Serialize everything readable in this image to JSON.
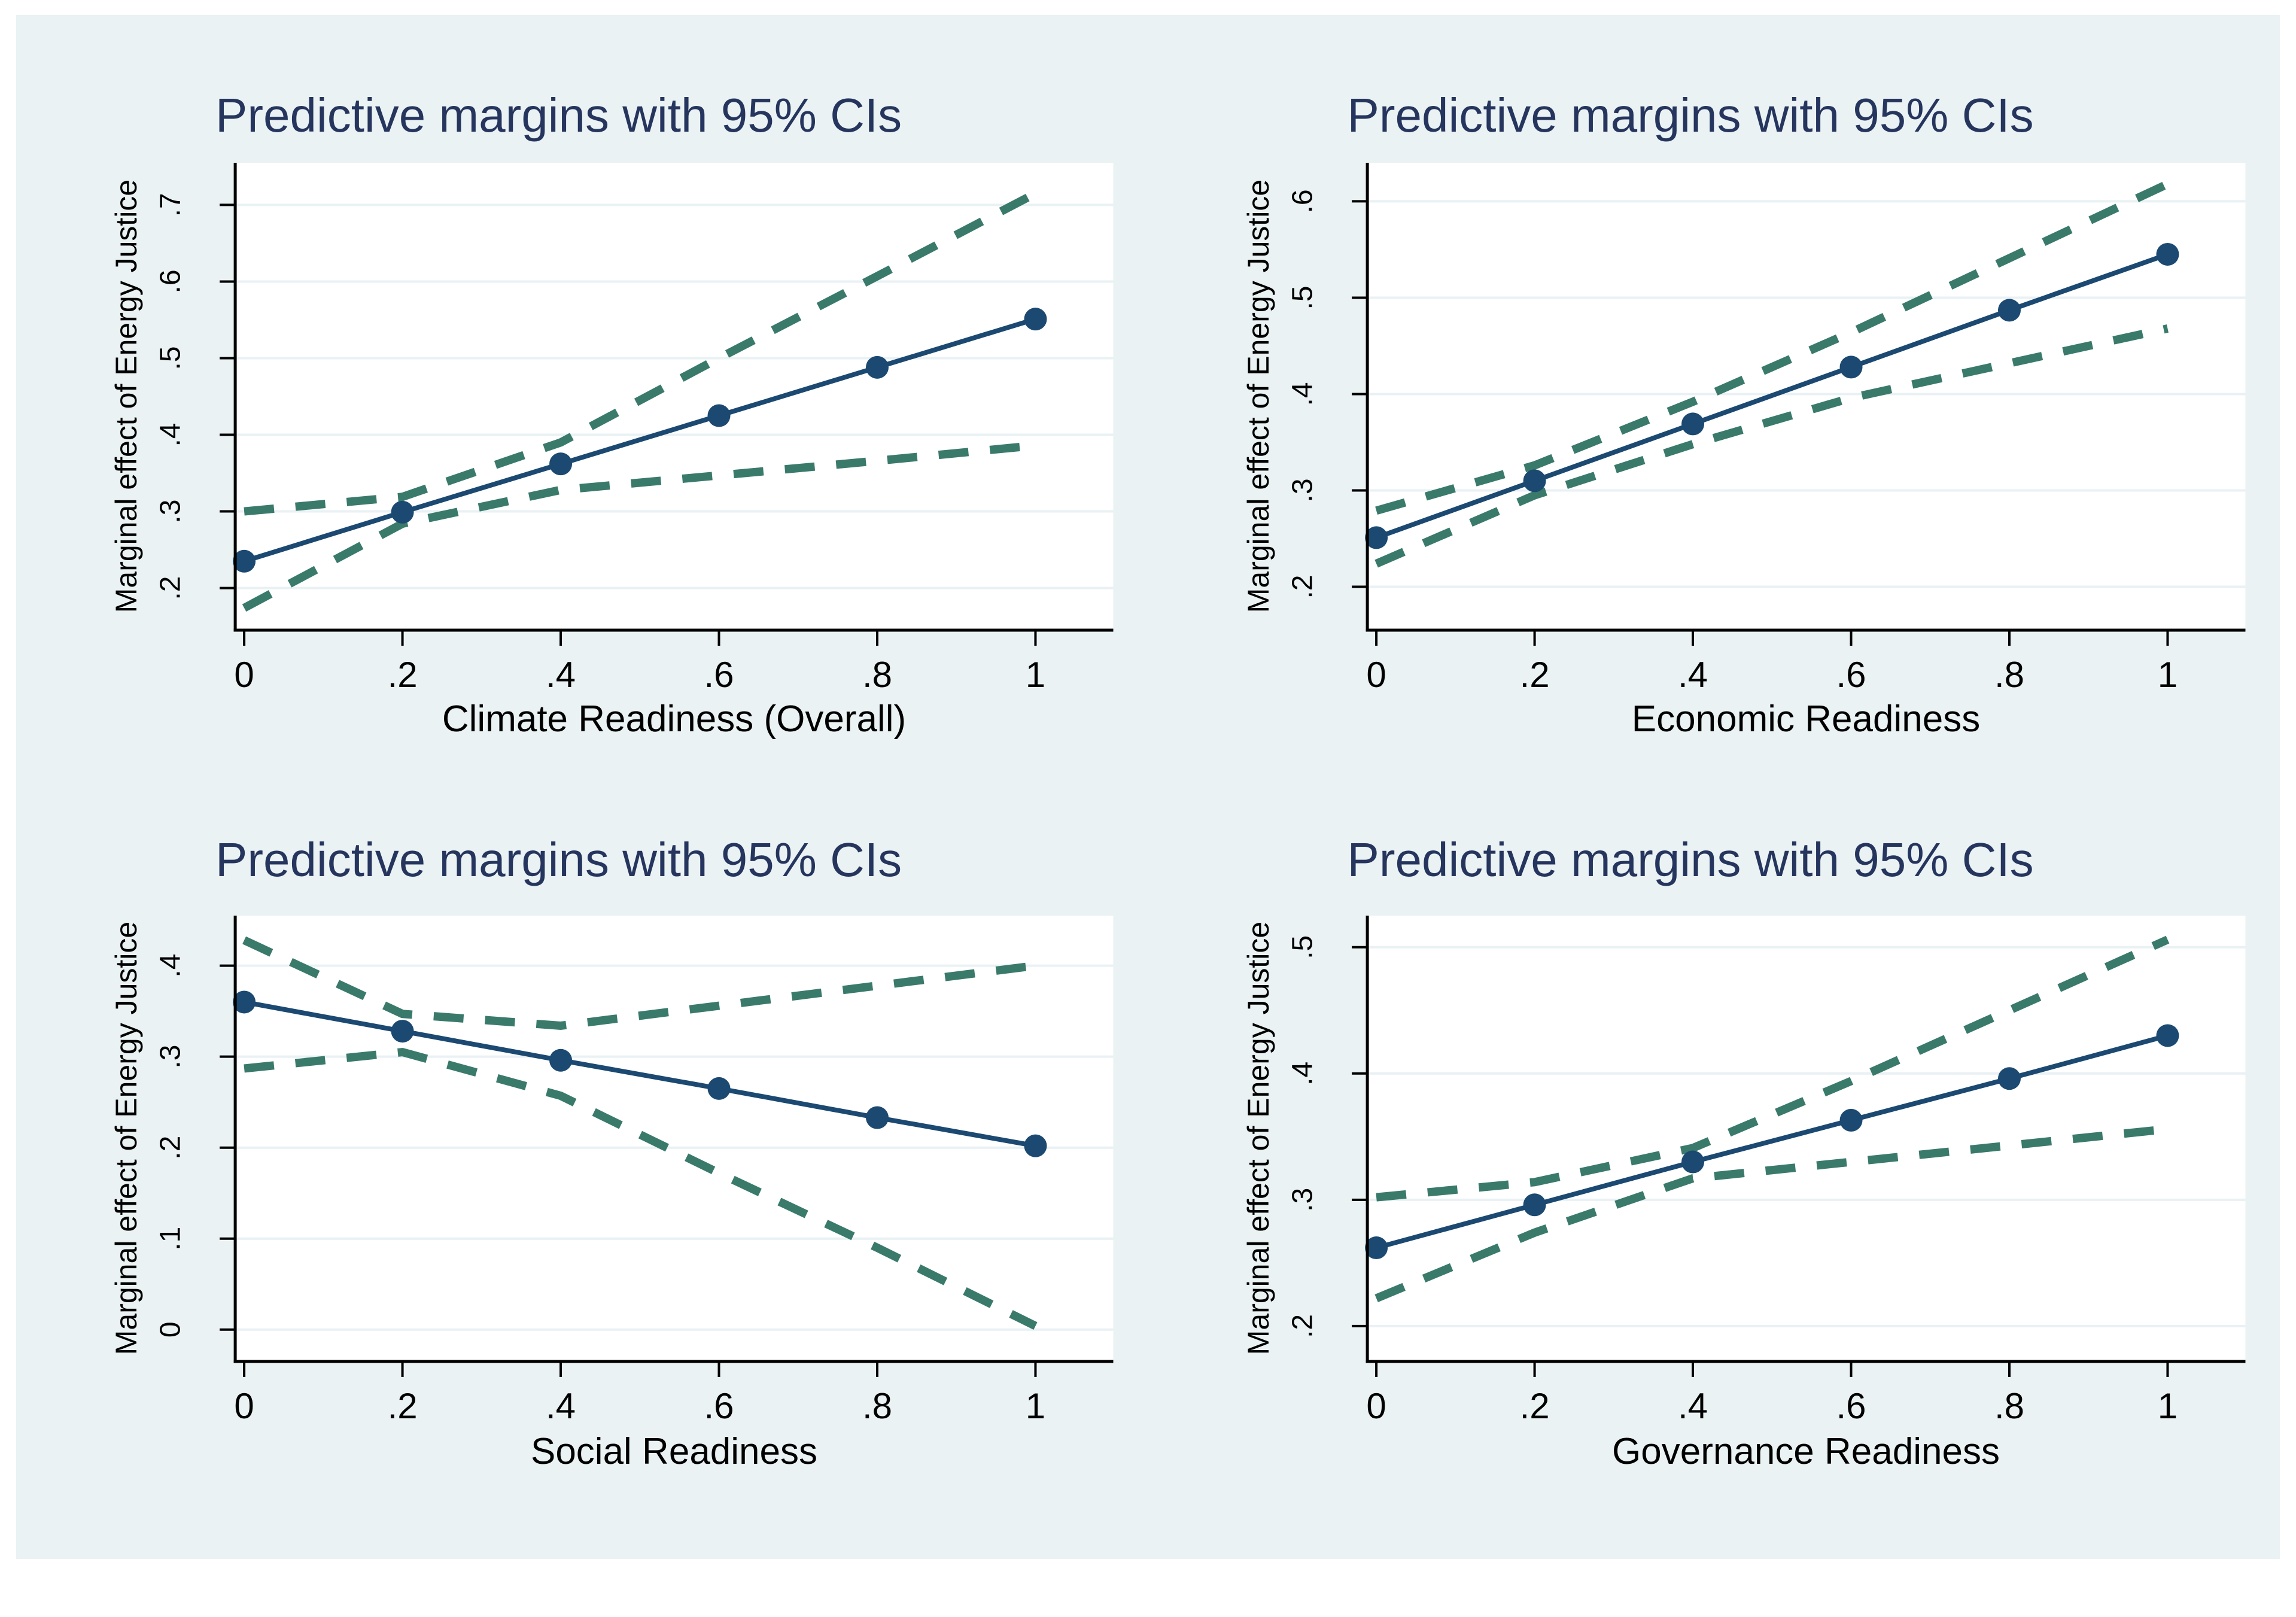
{
  "colors": {
    "page_bg": "#ffffff",
    "figure_bg": "#eaf2f3",
    "plot_bg": "#ffffff",
    "gridline": "#e9f1f4",
    "axis": "#000000",
    "title_text": "#26355e",
    "label_text": "#000000",
    "margin_line": "#1b4971",
    "ci_line": "#3a7a6b"
  },
  "chart_data": [
    {
      "type": "line",
      "title": "Predictive margins with 95% CIs",
      "xlabel": "Climate Readiness (Overall)",
      "ylabel": "Marginal effect of Energy Justice",
      "grid": "horizontal",
      "legend": "none",
      "x": [
        0,
        0.2,
        0.4,
        0.6,
        0.8,
        1
      ],
      "xtick_labels": [
        "0",
        ".2",
        ".4",
        ".6",
        ".8",
        "1"
      ],
      "yticks": [
        0.2,
        0.3,
        0.4,
        0.5,
        0.6,
        0.7
      ],
      "ytick_labels": [
        ".2",
        ".3",
        ".4",
        ".5",
        ".6",
        ".7"
      ],
      "ylim": [
        0.145,
        0.755
      ],
      "series": [
        {
          "name": "Predictive margin",
          "style": "solid-markers",
          "color": "#1b4971",
          "values": [
            0.235,
            0.299,
            0.362,
            0.425,
            0.488,
            0.551
          ]
        },
        {
          "name": "Upper 95% CI",
          "style": "dashed",
          "color": "#3a7a6b",
          "values": [
            0.3,
            0.319,
            0.39,
            0.5,
            0.607,
            0.715
          ]
        },
        {
          "name": "Lower 95% CI",
          "style": "dashed",
          "color": "#3a7a6b",
          "values": [
            0.174,
            0.284,
            0.328,
            0.347,
            0.366,
            0.386
          ]
        }
      ]
    },
    {
      "type": "line",
      "title": "Predictive margins with 95% CIs",
      "xlabel": "Economic Readiness",
      "ylabel": "Marginal effect of Energy Justice",
      "grid": "horizontal",
      "legend": "none",
      "x": [
        0,
        0.2,
        0.4,
        0.6,
        0.8,
        1
      ],
      "xtick_labels": [
        "0",
        ".2",
        ".4",
        ".6",
        ".8",
        "1"
      ],
      "yticks": [
        0.2,
        0.3,
        0.4,
        0.5,
        0.6
      ],
      "ytick_labels": [
        ".2",
        ".3",
        ".4",
        ".5",
        ".6"
      ],
      "ylim": [
        0.155,
        0.64
      ],
      "series": [
        {
          "name": "Predictive margin",
          "style": "solid-markers",
          "color": "#1b4971",
          "values": [
            0.251,
            0.31,
            0.369,
            0.428,
            0.487,
            0.545
          ]
        },
        {
          "name": "Upper 95% CI",
          "style": "dashed",
          "color": "#3a7a6b",
          "values": [
            0.279,
            0.326,
            0.392,
            0.464,
            0.541,
            0.618
          ]
        },
        {
          "name": "Lower 95% CI",
          "style": "dashed",
          "color": "#3a7a6b",
          "values": [
            0.224,
            0.295,
            0.348,
            0.396,
            0.432,
            0.468
          ]
        }
      ]
    },
    {
      "type": "line",
      "title": "Predictive margins with 95% CIs",
      "xlabel": "Social Readiness",
      "ylabel": "Marginal effect of Energy Justice",
      "grid": "horizontal",
      "legend": "none",
      "x": [
        0,
        0.2,
        0.4,
        0.6,
        0.8,
        1
      ],
      "xtick_labels": [
        "0",
        ".2",
        ".4",
        ".6",
        ".8",
        "1"
      ],
      "yticks": [
        0,
        0.1,
        0.2,
        0.3,
        0.4
      ],
      "ytick_labels": [
        "0",
        ".1",
        ".2",
        ".3",
        ".4"
      ],
      "ylim": [
        -0.035,
        0.455
      ],
      "series": [
        {
          "name": "Predictive margin",
          "style": "solid-markers",
          "color": "#1b4971",
          "values": [
            0.36,
            0.328,
            0.296,
            0.265,
            0.233,
            0.202
          ]
        },
        {
          "name": "Upper 95% CI",
          "style": "dashed",
          "color": "#3a7a6b",
          "values": [
            0.428,
            0.347,
            0.334,
            0.356,
            0.378,
            0.4
          ]
        },
        {
          "name": "Lower 95% CI",
          "style": "dashed",
          "color": "#3a7a6b",
          "values": [
            0.287,
            0.305,
            0.257,
            0.172,
            0.09,
            0.004
          ]
        }
      ]
    },
    {
      "type": "line",
      "title": "Predictive margins with 95% CIs",
      "xlabel": "Governance Readiness",
      "ylabel": "Marginal effect of Energy Justice",
      "grid": "horizontal",
      "legend": "none",
      "x": [
        0,
        0.2,
        0.4,
        0.6,
        0.8,
        1
      ],
      "xtick_labels": [
        "0",
        ".2",
        ".4",
        ".6",
        ".8",
        "1"
      ],
      "yticks": [
        0.2,
        0.3,
        0.4,
        0.5
      ],
      "ytick_labels": [
        ".2",
        ".3",
        ".4",
        ".5"
      ],
      "ylim": [
        0.172,
        0.525
      ],
      "series": [
        {
          "name": "Predictive margin",
          "style": "solid-markers",
          "color": "#1b4971",
          "values": [
            0.262,
            0.296,
            0.33,
            0.363,
            0.396,
            0.43
          ]
        },
        {
          "name": "Upper 95% CI",
          "style": "dashed",
          "color": "#3a7a6b",
          "values": [
            0.302,
            0.314,
            0.341,
            0.394,
            0.45,
            0.506
          ]
        },
        {
          "name": "Lower 95% CI",
          "style": "dashed",
          "color": "#3a7a6b",
          "values": [
            0.222,
            0.274,
            0.317,
            0.33,
            0.343,
            0.356
          ]
        }
      ]
    }
  ]
}
